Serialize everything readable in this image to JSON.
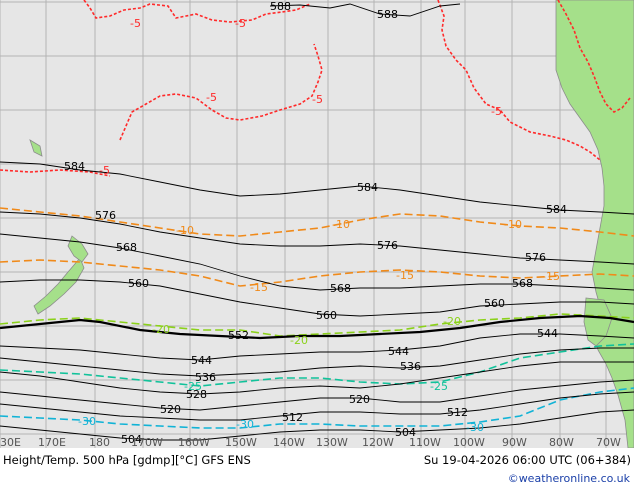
{
  "map": {
    "background": "#e6e6e6",
    "land_color": "#a5e08a",
    "grid_color": "#b4b4b4",
    "height_color": "#000000",
    "temp_warm_color": "#ff2a2a",
    "temp_mid_color": "#f08a1a",
    "temp_cold_color": "#8bd11a",
    "temp_colder_color": "#11c29a",
    "temp_coldest_color": "#11b3d6",
    "height_labels": [
      "588",
      "588",
      "584",
      "584",
      "584",
      "576",
      "576",
      "576",
      "568",
      "568",
      "568",
      "560",
      "560",
      "560",
      "552",
      "544",
      "544",
      "544",
      "536",
      "536",
      "528",
      "520",
      "520",
      "512",
      "512",
      "504",
      "504"
    ],
    "temp_labels": [
      "-5",
      "-5",
      "-5",
      "-5",
      "-5",
      "-5",
      "-10",
      "-10",
      "-10",
      "-15",
      "-15",
      "-15",
      "-20",
      "-20",
      "-20",
      "-25",
      "-25",
      "-30",
      "-30",
      "-30"
    ],
    "lon_labels": [
      "30E",
      "170E",
      "180",
      "170W",
      "160W",
      "150W",
      "140W",
      "130W",
      "120W",
      "110W",
      "100W",
      "90W",
      "80W",
      "70W"
    ]
  },
  "footer": {
    "title": "Height/Temp. 500 hPa [gdmp][°C] GFS ENS",
    "date": "Su 19-04-2026 06:00 UTC (06+384)",
    "credit": "©weatheronline.co.uk"
  }
}
